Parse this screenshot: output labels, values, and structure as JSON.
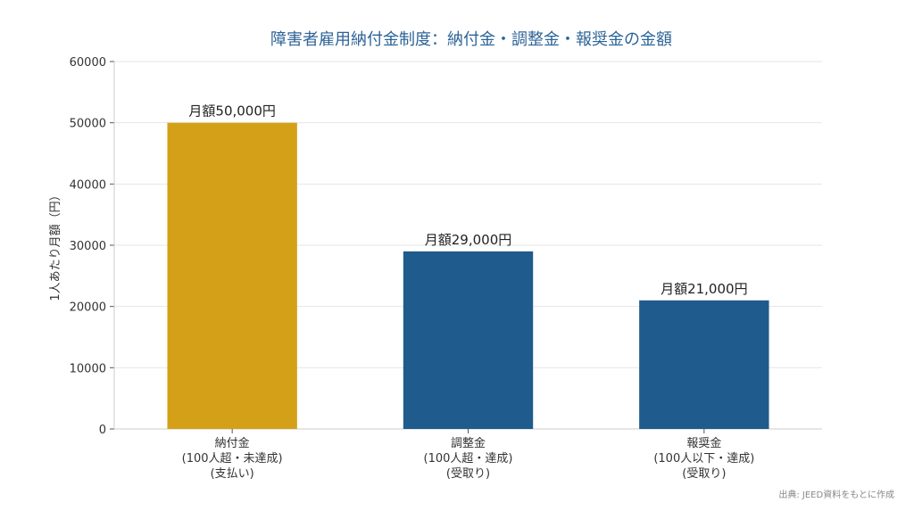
{
  "chart_data": {
    "type": "bar",
    "title": "障害者雇用納付金制度：納付金・調整金・報奨金の金額",
    "ylabel": "1人あたり月額（円）",
    "xlabel": "",
    "ylim": [
      0,
      60000
    ],
    "yticks": [
      0,
      10000,
      20000,
      30000,
      40000,
      50000,
      60000
    ],
    "grid": true,
    "categories": [
      [
        "納付金",
        "(100人超・未達成)",
        "(支払い)"
      ],
      [
        "調整金",
        "(100人超・達成)",
        "(受取り)"
      ],
      [
        "報奨金",
        "(100人以下・達成)",
        "(受取り)"
      ]
    ],
    "values": [
      50000,
      29000,
      21000
    ],
    "data_labels": [
      "月額50,000円",
      "月額29,000円",
      "月額21,000円"
    ],
    "colors": [
      "#d4a017",
      "#1f5b8c",
      "#1f5b8c"
    ]
  },
  "source_note": "出典: JEED資料をもとに作成"
}
